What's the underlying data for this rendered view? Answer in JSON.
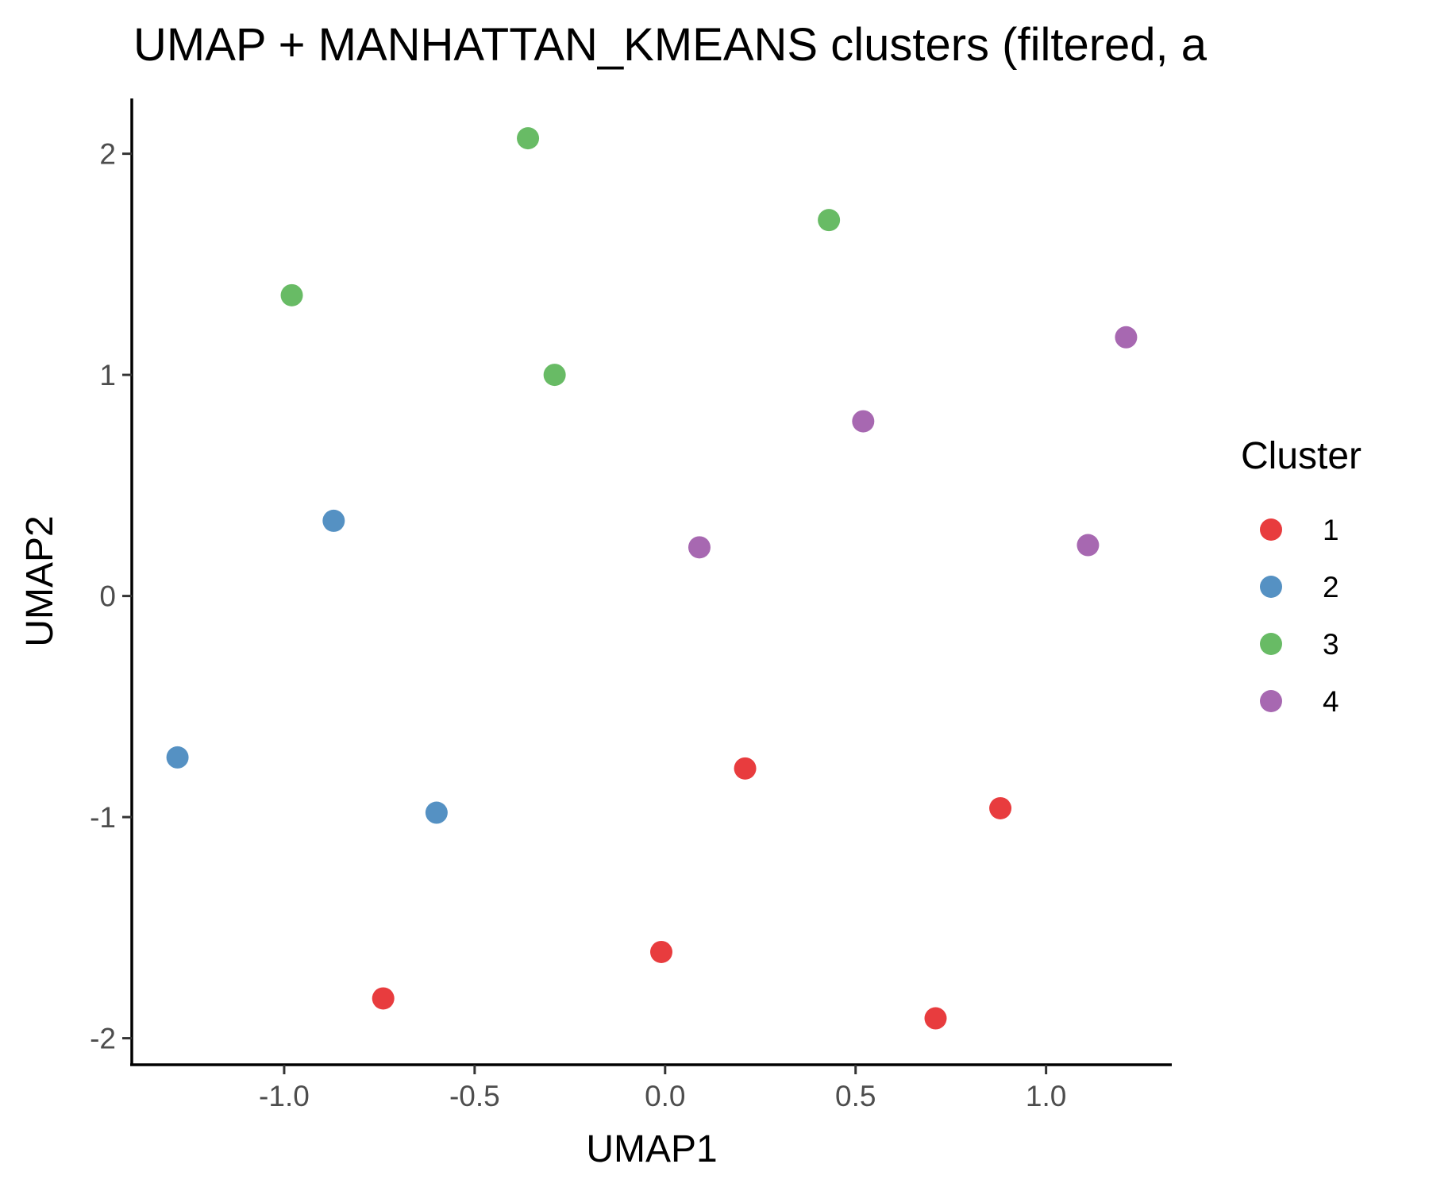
{
  "chart_data": {
    "type": "scatter",
    "title": "UMAP + MANHATTAN_KMEANS clusters (filtered, a",
    "xlabel": "UMAP1",
    "ylabel": "UMAP2",
    "xlim": [
      -1.4,
      1.33
    ],
    "ylim": [
      -2.12,
      2.25
    ],
    "xticks": [
      -1.0,
      -0.5,
      0.0,
      0.5,
      1.0
    ],
    "xtick_labels": [
      "-1.0",
      "-0.5",
      "0.0",
      "0.5",
      "1.0"
    ],
    "yticks": [
      -2,
      -1,
      0,
      1,
      2
    ],
    "ytick_labels": [
      "-2",
      "-1",
      "0",
      "1",
      "2"
    ],
    "grid": false,
    "legend": {
      "title": "Cluster",
      "placement": "right",
      "entries": [
        "1",
        "2",
        "3",
        "4"
      ]
    },
    "series": [
      {
        "name": "1",
        "color": "#E41A1C",
        "points": [
          {
            "x": -0.74,
            "y": -1.82
          },
          {
            "x": -0.01,
            "y": -1.61
          },
          {
            "x": 0.21,
            "y": -0.78
          },
          {
            "x": 0.71,
            "y": -1.91
          },
          {
            "x": 0.88,
            "y": -0.96
          }
        ]
      },
      {
        "name": "2",
        "color": "#377EB8",
        "points": [
          {
            "x": -1.28,
            "y": -0.73
          },
          {
            "x": -0.87,
            "y": 0.34
          },
          {
            "x": -0.6,
            "y": -0.98
          }
        ]
      },
      {
        "name": "3",
        "color": "#4DAF4A",
        "points": [
          {
            "x": -0.98,
            "y": 1.36
          },
          {
            "x": -0.36,
            "y": 2.07
          },
          {
            "x": -0.29,
            "y": 1.0
          },
          {
            "x": 0.43,
            "y": 1.7
          }
        ]
      },
      {
        "name": "4",
        "color": "#984EA3",
        "points": [
          {
            "x": 0.09,
            "y": 0.22
          },
          {
            "x": 0.52,
            "y": 0.79
          },
          {
            "x": 1.11,
            "y": 0.23
          },
          {
            "x": 1.21,
            "y": 1.17
          }
        ]
      }
    ]
  }
}
